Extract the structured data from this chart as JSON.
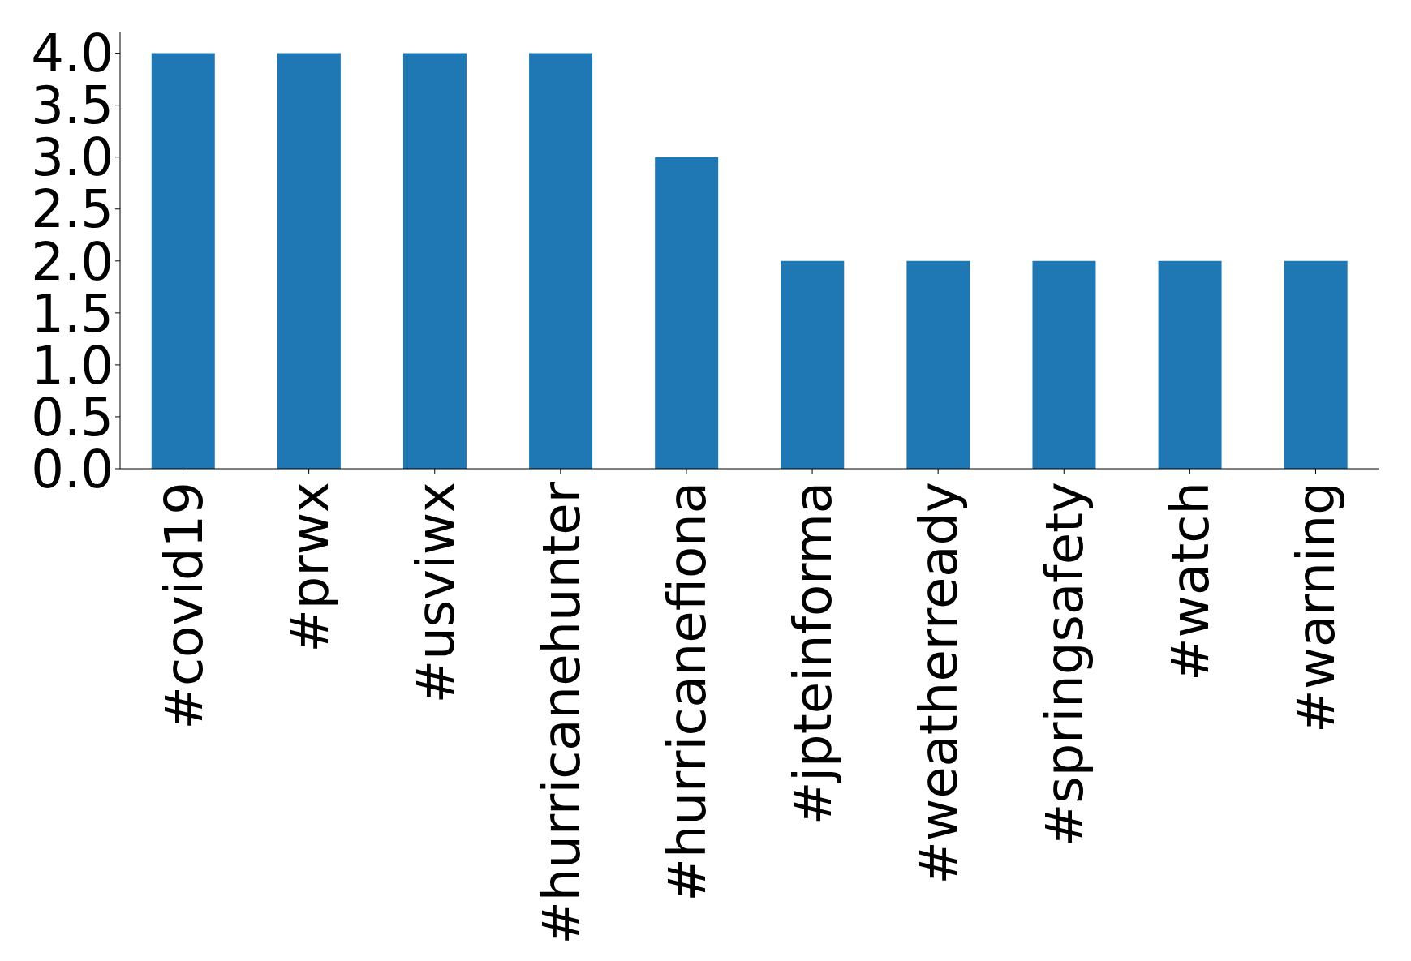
{
  "chart_data": {
    "type": "bar",
    "categories": [
      "#covid19",
      "#prwx",
      "#usviwx",
      "#hurricanehunter",
      "#hurricanefiona",
      "#jpteinforma",
      "#weatherready",
      "#springsafety",
      "#watch",
      "#warning"
    ],
    "values": [
      4,
      4,
      4,
      4,
      3,
      2,
      2,
      2,
      2,
      2
    ],
    "color": "#1f77b4",
    "ylim": [
      0,
      4.2
    ],
    "yticks": [
      {
        "value": 0,
        "label": "0.0"
      },
      {
        "value": 0.5,
        "label": "0.5"
      },
      {
        "value": 1,
        "label": "1.0"
      },
      {
        "value": 1.5,
        "label": "1.5"
      },
      {
        "value": 2,
        "label": "2.0"
      },
      {
        "value": 2.5,
        "label": "2.5"
      },
      {
        "value": 3,
        "label": "3.0"
      },
      {
        "value": 3.5,
        "label": "3.5"
      },
      {
        "value": 4,
        "label": "4.0"
      }
    ],
    "grid": false,
    "legend": false
  }
}
